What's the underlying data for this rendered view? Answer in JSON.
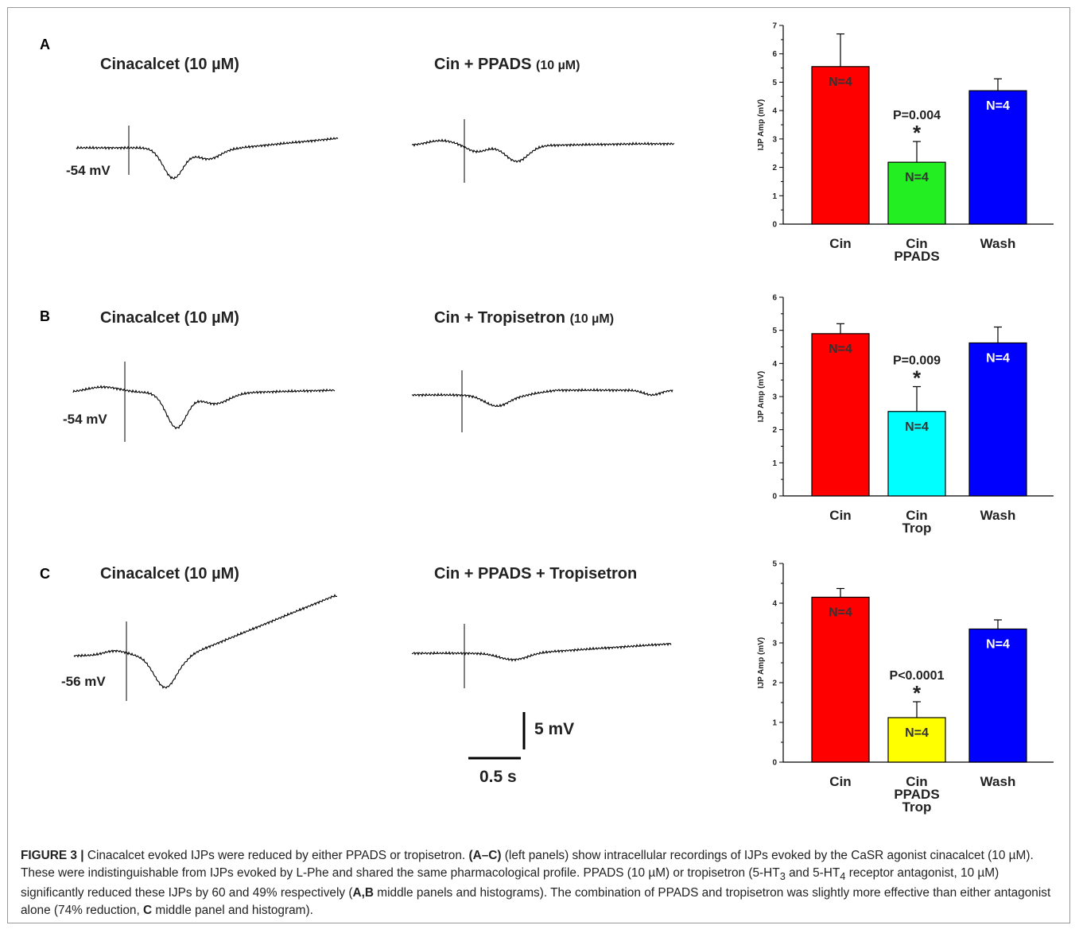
{
  "panels": [
    {
      "letter": "A",
      "left_title": "Cinacalcet (10 µM)",
      "right_title_main": "Cin + PPADS",
      "right_title_small": "(10 µM)",
      "membrane_potential": "-54 mV"
    },
    {
      "letter": "B",
      "left_title": "Cinacalcet (10 µM)",
      "right_title_main": "Cin + Tropisetron",
      "right_title_small": "(10 µM)",
      "membrane_potential": "-54 mV"
    },
    {
      "letter": "C",
      "left_title": "Cinacalcet (10 µM)",
      "right_title_main": "Cin + PPADS + Tropisetron",
      "right_title_small": "",
      "membrane_potential": "-56 mV"
    }
  ],
  "scale_bar": {
    "voltage": "5 mV",
    "time": "0.5 s"
  },
  "chart_data": [
    {
      "type": "bar",
      "panel": "A",
      "ylabel": "IJP Amp (mV)",
      "ylim": [
        0,
        7
      ],
      "yticks": [
        0,
        1,
        2,
        3,
        4,
        5,
        6,
        7
      ],
      "categories": [
        [
          "Cin"
        ],
        [
          "Cin",
          "PPADS"
        ],
        [
          "Wash"
        ]
      ],
      "values": [
        5.55,
        2.18,
        4.7
      ],
      "errors": [
        1.15,
        0.73,
        0.42
      ],
      "n_labels": [
        "N=4",
        "N=4",
        "N=4"
      ],
      "colors": [
        "#ff0000",
        "#22ee22",
        "#0000ff"
      ],
      "n_label_colors": [
        "#333333",
        "#333333",
        "#ffffff"
      ],
      "significance": {
        "index": 1,
        "p_text": "P=0.004",
        "star": "*"
      }
    },
    {
      "type": "bar",
      "panel": "B",
      "ylabel": "IJP Amp (mV)",
      "ylim": [
        0,
        6
      ],
      "yticks": [
        0,
        1,
        2,
        3,
        4,
        5,
        6
      ],
      "categories": [
        [
          "Cin"
        ],
        [
          "Cin",
          "Trop"
        ],
        [
          "Wash"
        ]
      ],
      "values": [
        4.9,
        2.55,
        4.62
      ],
      "errors": [
        0.3,
        0.75,
        0.48
      ],
      "n_labels": [
        "N=4",
        "N=4",
        "N=4"
      ],
      "colors": [
        "#ff0000",
        "#00ffff",
        "#0000ff"
      ],
      "n_label_colors": [
        "#333333",
        "#333333",
        "#ffffff"
      ],
      "significance": {
        "index": 1,
        "p_text": "P=0.009",
        "star": "*"
      }
    },
    {
      "type": "bar",
      "panel": "C",
      "ylabel": "IJP Amp (mV)",
      "ylim": [
        0,
        5
      ],
      "yticks": [
        0,
        1,
        2,
        3,
        4,
        5
      ],
      "categories": [
        [
          "Cin"
        ],
        [
          "Cin",
          "PPADS",
          "Trop"
        ],
        [
          "Wash"
        ]
      ],
      "values": [
        4.15,
        1.12,
        3.35
      ],
      "errors": [
        0.22,
        0.4,
        0.23
      ],
      "n_labels": [
        "N=4",
        "N=4",
        "N=4"
      ],
      "colors": [
        "#ff0000",
        "#ffff00",
        "#0000ff"
      ],
      "n_label_colors": [
        "#333333",
        "#333333",
        "#ffffff"
      ],
      "significance": {
        "index": 1,
        "p_text": "P<0.0001",
        "star": "*"
      }
    }
  ],
  "caption": {
    "figure_label": "FIGURE 3 |",
    "s1": " Cinacalcet evoked IJPs were reduced by either PPADS or tropisetron. ",
    "b1": "(A–C)",
    "s2": " (left panels) show intracellular recordings of IJPs evoked by the CaSR agonist cinacalcet (10 µM). These were indistinguishable from IJPs evoked by L-Phe and shared the same pharmacological profile. PPADS (10 µM) or tropisetron (5-HT",
    "sub1": "3",
    "s3": " and 5-HT",
    "sub2": "4",
    "s4": " receptor antagonist, 10 µM) significantly reduced these IJPs by 60 and 49% respectively (",
    "b2": "A,B",
    "s5": " middle panels and histograms). The combination of PPADS and tropisetron was slightly more effective than either antagonist alone (74% reduction, ",
    "b3": "C",
    "s6": " middle panel and histogram)."
  }
}
